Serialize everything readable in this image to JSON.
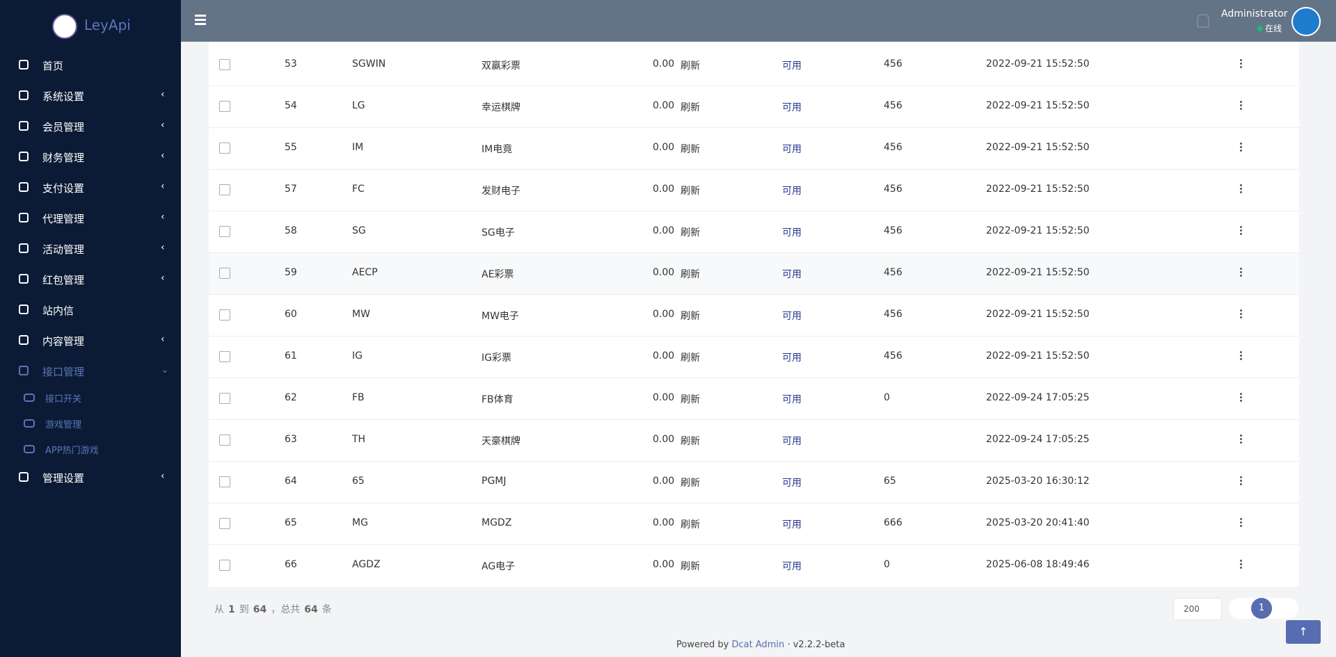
{
  "sidebar": {
    "logo": "LeyApi",
    "menu": [
      {
        "label": "首页"
      },
      {
        "label": "系统设置"
      },
      {
        "label": "会员管理"
      },
      {
        "label": "财务管理"
      },
      {
        "label": "支付设置"
      },
      {
        "label": "代理管理"
      },
      {
        "label": "活动管理"
      },
      {
        "label": "红包管理"
      },
      {
        "label": "站内信"
      },
      {
        "label": "内容管理"
      },
      {
        "label": "接口管理",
        "children": [
          "接口开关",
          "游戏管理",
          "APP热门游戏"
        ]
      },
      {
        "label": "管理设置"
      }
    ]
  },
  "header": {
    "user": "Administrator",
    "status": "在线"
  },
  "table": {
    "rows": [
      [
        "53",
        "SGWIN",
        "双赢彩票",
        "0.00",
        "刷新",
        "可用",
        "456",
        "2022-09-21 15:52:50"
      ],
      [
        "54",
        "LG",
        "幸运棋牌",
        "0.00",
        "刷新",
        "可用",
        "456",
        "2022-09-21 15:52:50"
      ],
      [
        "55",
        "IM",
        "IM电竟",
        "0.00",
        "刷新",
        "可用",
        "456",
        "2022-09-21 15:52:50"
      ],
      [
        "57",
        "FC",
        "发财电子",
        "0.00",
        "刷新",
        "可用",
        "456",
        "2022-09-21 15:52:50"
      ],
      [
        "58",
        "SG",
        "SG电子",
        "0.00",
        "刷新",
        "可用",
        "456",
        "2022-09-21 15:52:50"
      ],
      [
        "59",
        "AECP",
        "AE彩票",
        "0.00",
        "刷新",
        "可用",
        "456",
        "2022-09-21 15:52:50"
      ],
      [
        "60",
        "MW",
        "MW电子",
        "0.00",
        "刷新",
        "可用",
        "456",
        "2022-09-21 15:52:50"
      ],
      [
        "61",
        "IG",
        "IG彩票",
        "0.00",
        "刷新",
        "可用",
        "456",
        "2022-09-21 15:52:50"
      ],
      [
        "62",
        "FB",
        "FB体育",
        "0.00",
        "刷新",
        "可用",
        "0",
        "2022-09-24 17:05:25"
      ],
      [
        "63",
        "TH",
        "天豪棋牌",
        "0.00",
        "刷新",
        "可用",
        null,
        "2022-09-24 17:05:25"
      ],
      [
        "64",
        "65",
        "PGMJ",
        "0.00",
        "刷新",
        "可用",
        "65",
        "2025-03-20 16:30:12"
      ],
      [
        "65",
        "MG",
        "MGDZ",
        "0.00",
        "刷新",
        "可用",
        "666",
        "2025-03-20 20:41:40"
      ],
      [
        "66",
        "AGDZ",
        "AG电子",
        "0.00",
        "刷新",
        "可用",
        "0",
        "2025-06-08 18:49:46"
      ]
    ]
  },
  "pagination": {
    "summary": [
      "从",
      "1",
      "到",
      "64",
      "，总共",
      "64",
      "条"
    ],
    "per_page": "200",
    "current": "1"
  },
  "footer": {
    "powered": "Powered by",
    "brand": "Dcat Admin",
    "dot": "·",
    "version": "v2.2.2-beta"
  }
}
